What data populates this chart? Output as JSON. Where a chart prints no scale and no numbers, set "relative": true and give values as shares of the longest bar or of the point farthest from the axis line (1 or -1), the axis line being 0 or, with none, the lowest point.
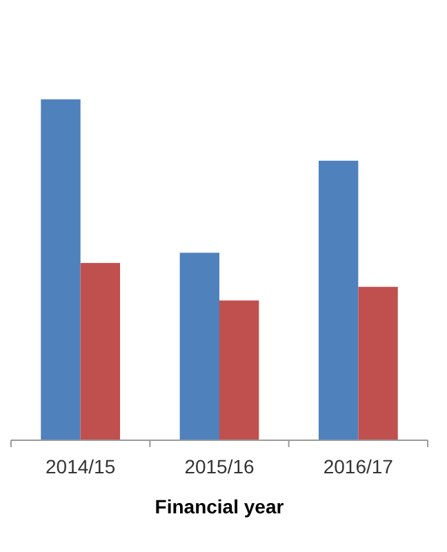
{
  "chart_data": {
    "type": "bar",
    "relative": true,
    "xlabel": "Financial year",
    "categories": [
      "2014/15",
      "2015/16",
      "2016/17"
    ],
    "series": [
      {
        "color": "#4f81bd",
        "values": [
          1,
          0.55,
          0.82
        ]
      },
      {
        "color": "#c0504d",
        "values": [
          0.52,
          0.41,
          0.45
        ]
      }
    ]
  }
}
